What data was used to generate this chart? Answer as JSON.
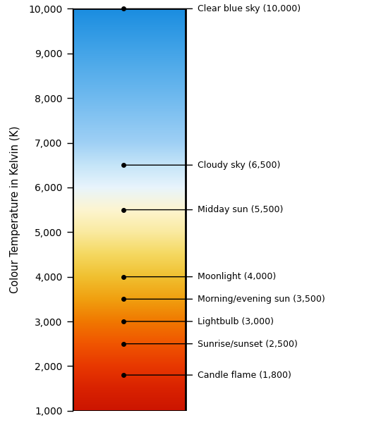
{
  "ylabel": "Colour Temperature in Kelvin (K)",
  "y_min": 1000,
  "y_max": 10000,
  "yticks": [
    1000,
    2000,
    3000,
    4000,
    5000,
    6000,
    7000,
    8000,
    9000,
    10000
  ],
  "ytick_labels": [
    "1,000",
    "2,000",
    "3,000",
    "4,000",
    "5,000",
    "6,000",
    "7,000",
    "8,000",
    "9,000",
    "10,000"
  ],
  "background_color": "#ffffff",
  "annotations": [
    {
      "temp": 10000,
      "label": "Clear blue sky (10,000)"
    },
    {
      "temp": 6500,
      "label": "Cloudy sky (6,500)"
    },
    {
      "temp": 5500,
      "label": "Midday sun (5,500)"
    },
    {
      "temp": 4000,
      "label": "Moonlight (4,000)"
    },
    {
      "temp": 3500,
      "label": "Morning/evening sun (3,500)"
    },
    {
      "temp": 3000,
      "label": "Lightbulb (3,000)"
    },
    {
      "temp": 2500,
      "label": "Sunrise/sunset (2,500)"
    },
    {
      "temp": 1800,
      "label": "Candle flame (1,800)"
    }
  ],
  "gradient_colors": [
    [
      1000,
      "#cc1500"
    ],
    [
      1500,
      "#d92200"
    ],
    [
      2000,
      "#e83800"
    ],
    [
      2500,
      "#f05500"
    ],
    [
      3000,
      "#f07800"
    ],
    [
      3500,
      "#f0a010"
    ],
    [
      4000,
      "#f0c030"
    ],
    [
      4500,
      "#f5d860"
    ],
    [
      5000,
      "#faeaa0"
    ],
    [
      5500,
      "#fdf5d0"
    ],
    [
      6000,
      "#e8f4fc"
    ],
    [
      6500,
      "#c5e5f8"
    ],
    [
      7000,
      "#9fd0f5"
    ],
    [
      8000,
      "#70baef"
    ],
    [
      9000,
      "#45a5e8"
    ],
    [
      10000,
      "#1a8de0"
    ]
  ]
}
